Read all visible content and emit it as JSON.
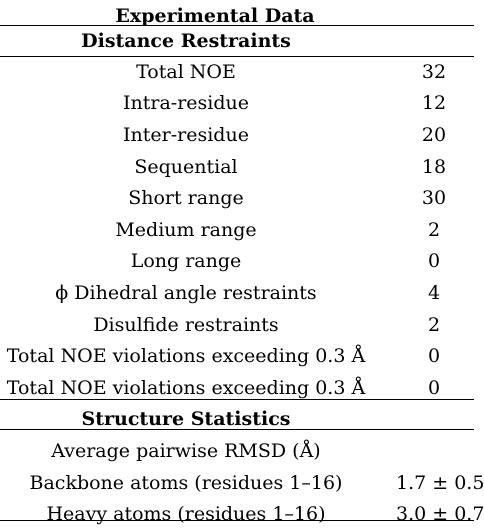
{
  "table": {
    "title": "Experimental Data",
    "sections": [
      {
        "heading": "Distance Restraints",
        "rows": [
          {
            "label": "Total NOE",
            "value": "32"
          },
          {
            "label": "Intra-residue",
            "value": "12"
          },
          {
            "label": "Inter-residue",
            "value": "20"
          },
          {
            "label": "Sequential",
            "value": "18"
          },
          {
            "label": "Short range",
            "value": "30"
          },
          {
            "label": "Medium range",
            "value": "2"
          },
          {
            "label": "Long range",
            "value": "0"
          },
          {
            "label": "ϕ Dihedral angle restraints",
            "value": "4"
          },
          {
            "label": "Disulfide restraints",
            "value": "2"
          },
          {
            "label": "Total NOE violations exceeding 0.3 Å",
            "value": "0"
          },
          {
            "label": "Total NOE violations exceeding 0.3 Å",
            "value": "0"
          }
        ]
      },
      {
        "heading": "Structure Statistics",
        "rows": [
          {
            "label": "Average pairwise RMSD (Å)",
            "value": ""
          },
          {
            "label": "Backbone atoms (residues 1–16)",
            "value": "1.7 ± 0.5"
          },
          {
            "label": "Heavy atoms (residues 1–16)",
            "value": "3.0 ± 0.7"
          }
        ]
      }
    ]
  }
}
